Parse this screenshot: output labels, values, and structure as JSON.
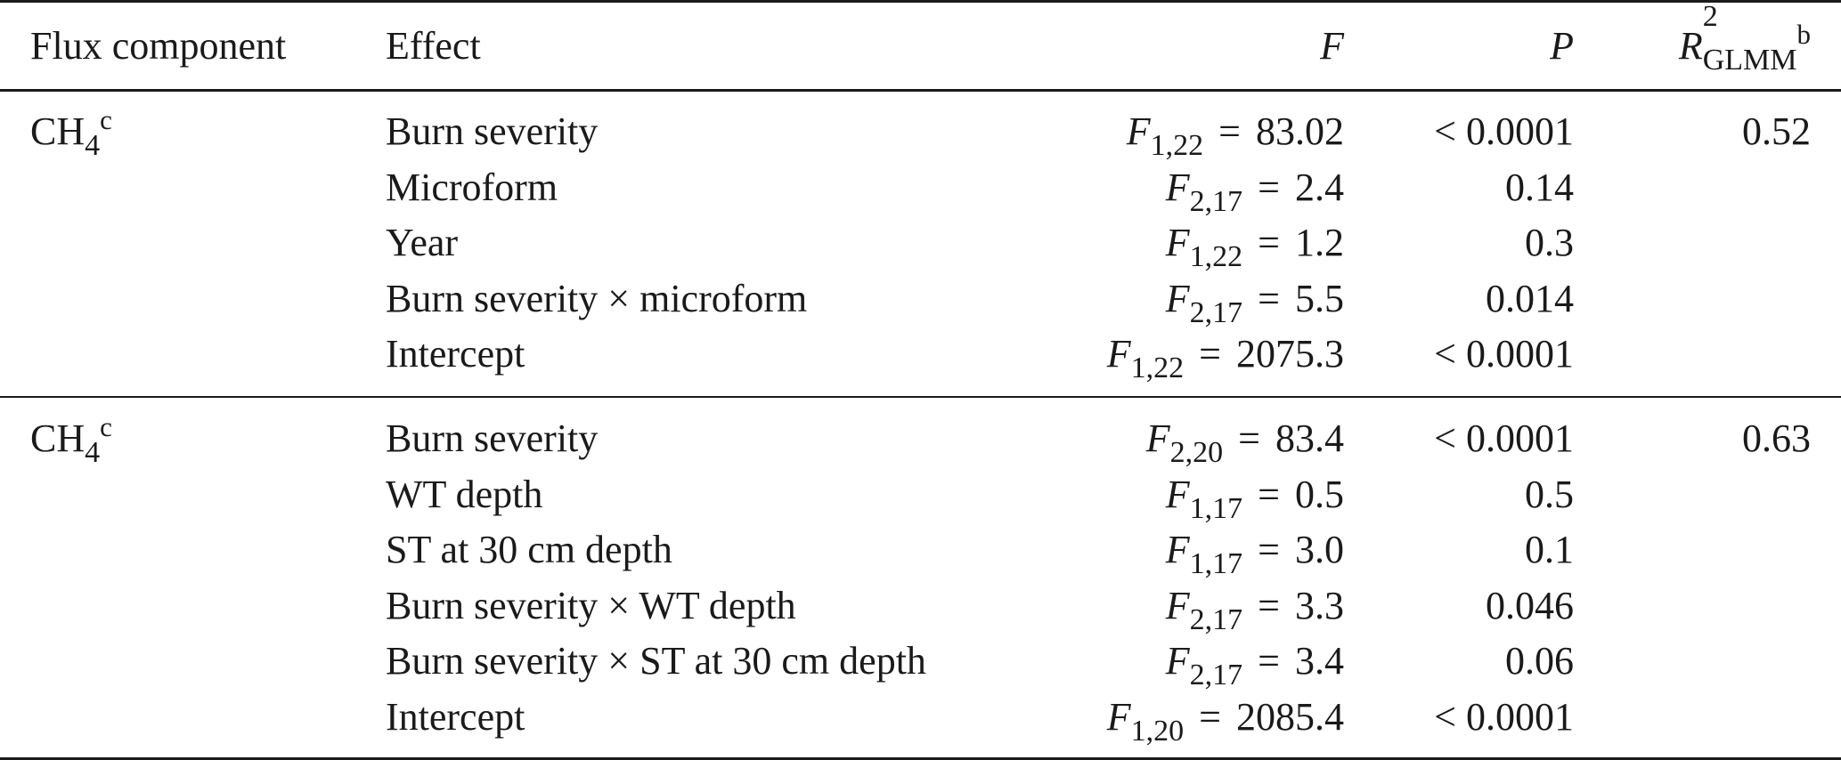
{
  "header": {
    "flux_component": "Flux component",
    "effect": "Effect",
    "f": "F",
    "p": "P",
    "r2_symbol": "R",
    "r2_sup": "2",
    "r2_sub": "GLMM",
    "r2_note": "b"
  },
  "sections": [
    {
      "component": "CH",
      "component_sub": "4",
      "component_note": "c",
      "r2": "0.52",
      "rows": [
        {
          "effect": "Burn severity",
          "df": "1,22",
          "fval": "83.02",
          "p": "< 0.0001"
        },
        {
          "effect": "Microform",
          "df": "2,17",
          "fval": "2.4",
          "p": "0.14"
        },
        {
          "effect": "Year",
          "df": "1,22",
          "fval": "1.2",
          "p": "0.3"
        },
        {
          "effect": "Burn severity × microform",
          "df": "2,17",
          "fval": "5.5",
          "p": "0.014"
        },
        {
          "effect": "Intercept",
          "df": "1,22",
          "fval": "2075.3",
          "p": "< 0.0001"
        }
      ]
    },
    {
      "component": "CH",
      "component_sub": "4",
      "component_note": "c",
      "r2": "0.63",
      "rows": [
        {
          "effect": "Burn severity",
          "df": "2,20",
          "fval": "83.4",
          "p": "< 0.0001"
        },
        {
          "effect": "WT depth",
          "df": "1,17",
          "fval": "0.5",
          "p": "0.5"
        },
        {
          "effect": "ST at 30 cm depth",
          "df": "1,17",
          "fval": "3.0",
          "p": "0.1"
        },
        {
          "effect": "Burn severity × WT depth",
          "df": "2,17",
          "fval": "3.3",
          "p": "0.046"
        },
        {
          "effect": "Burn severity × ST at 30 cm depth",
          "df": "2,17",
          "fval": "3.4",
          "p": "0.06"
        },
        {
          "effect": "Intercept",
          "df": "1,20",
          "fval": "2085.4",
          "p": "< 0.0001"
        }
      ]
    }
  ]
}
